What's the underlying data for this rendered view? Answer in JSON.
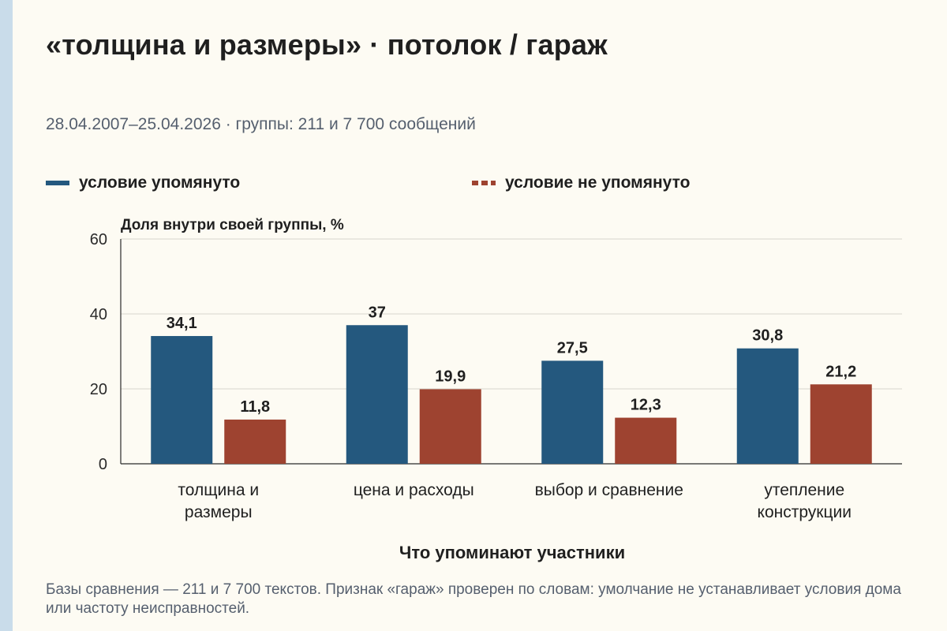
{
  "page": {
    "title": "«толщина и размеры» · потолок / гараж",
    "subtitle": "28.04.2007–25.04.2026 · группы: 211 и 7 700 сообщений",
    "footnote": "Базы сравнения — 211 и 7 700 текстов. Признак «гараж» проверен по словам: умолчание не устанавливает условия дома или частоту неисправностей."
  },
  "chart_data": {
    "type": "bar",
    "title": "«толщина и размеры» · потолок / гараж",
    "subtitle": "28.04.2007–25.04.2026 · группы: 211 и 7 700 сообщений",
    "ylabel": "Доля внутри своей группы, %",
    "xlabel": "Что упоминают участники",
    "ylim": [
      0,
      60
    ],
    "yticks": [
      0,
      20,
      40,
      60
    ],
    "grid": true,
    "legend_position": "top",
    "categories": [
      [
        "толщина и",
        "размеры"
      ],
      [
        "цена и расходы"
      ],
      [
        "выбор и сравнение"
      ],
      [
        "утепление",
        "конструкции"
      ]
    ],
    "series": [
      {
        "name": "условие упомянуто",
        "color": "#24587e",
        "values": [
          34.1,
          37,
          27.5,
          30.8
        ],
        "labels": [
          "34,1",
          "37",
          "27,5",
          "30,8"
        ]
      },
      {
        "name": "условие не упомянуто",
        "color": "#9e4330",
        "values": [
          11.8,
          19.9,
          12.3,
          21.2
        ],
        "labels": [
          "11,8",
          "19,9",
          "12,3",
          "21,2"
        ]
      }
    ]
  }
}
